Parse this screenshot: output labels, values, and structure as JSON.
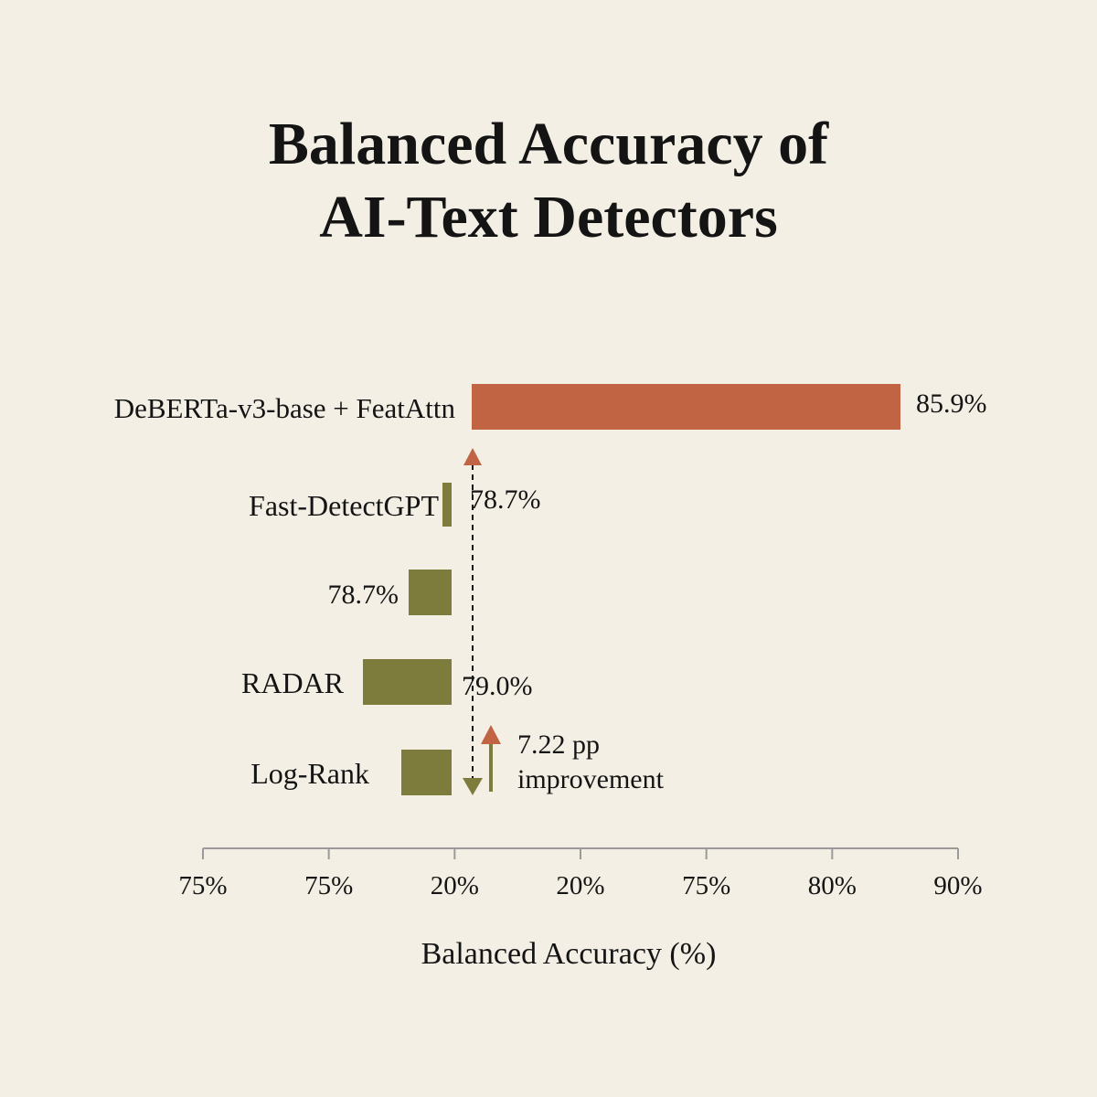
{
  "title": {
    "line1": "Balanced Accuracy of",
    "line2": "AI-Text Detectors"
  },
  "colors": {
    "background": "#f3efe4",
    "highlight_bar": "#c06444",
    "baseline_bar": "#7d7c3c",
    "axis": "#9a9a9a",
    "text": "#141414"
  },
  "chart_data": {
    "type": "bar",
    "orientation": "horizontal",
    "xlabel": "Balanced Accuracy (%)",
    "x_tick_labels": [
      "75%",
      "75%",
      "20%",
      "20%",
      "75%",
      "80%",
      "90%"
    ],
    "categories": [
      "DeBERTa-v3-base + FeatAttn",
      "Fast-DetectGPT",
      "",
      "RADAR",
      "Log-Rank"
    ],
    "values": [
      85.9,
      78.7,
      78.7,
      79.0,
      78.7
    ],
    "value_labels": [
      "85.9%",
      "78.7%",
      "78.7%",
      "79.0%",
      ""
    ],
    "highlight_index": 0,
    "reference_value": 79.0,
    "annotation": {
      "line1": "7.22 pp",
      "line2": "improvement"
    },
    "grid": false,
    "legend": "none"
  }
}
